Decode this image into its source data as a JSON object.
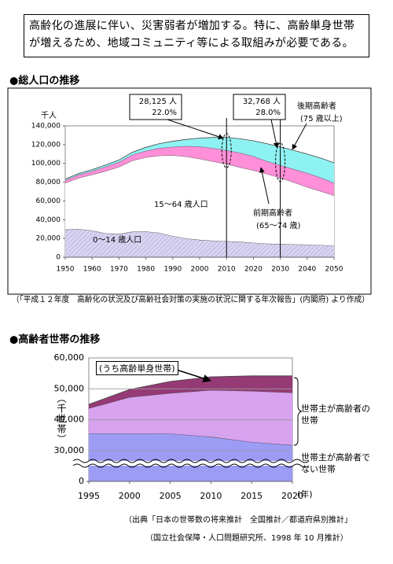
{
  "header": {
    "lines": [
      "高齢化の進展に伴い、災害弱者が増加する。特に、高齢単身世帯",
      "が増えるため、地域コミュニティ等による取組みが必要である。"
    ]
  },
  "chart_data": [
    {
      "type": "area",
      "stacked": true,
      "title": "●総人口の推移",
      "y_unit": "千人",
      "source": [
        "（「平成１２年度　高齢化の状況及び高齢社会対策の実施の状況に関する年次報告」(内閣府) より作成）"
      ],
      "x": [
        1950,
        1955,
        1960,
        1965,
        1970,
        1975,
        1980,
        1985,
        1990,
        1995,
        2000,
        2005,
        2010,
        2015,
        2020,
        2025,
        2030,
        2035,
        2040,
        2045,
        2050
      ],
      "series": [
        {
          "name": "0～14 歳人口",
          "color": "#d9d4f2",
          "pattern": "hatch",
          "values": [
            29400,
            30100,
            28400,
            25500,
            24800,
            27200,
            27500,
            26000,
            22500,
            20000,
            18500,
            17600,
            17100,
            16400,
            15400,
            14500,
            14000,
            13700,
            13400,
            12900,
            12300
          ]
        },
        {
          "name": "15～64 歳人口",
          "color": "#ffffff",
          "values": [
            49800,
            54400,
            59600,
            66300,
            71500,
            75800,
            79000,
            82300,
            86200,
            87300,
            86400,
            84500,
            82400,
            79400,
            77200,
            74300,
            70800,
            66200,
            61300,
            57500,
            53500
          ]
        },
        {
          "name": "前期高齢者",
          "note": "(65～74 歳)",
          "color": "#ff8fd8",
          "values": [
            2900,
            3400,
            3800,
            4600,
            5200,
            6100,
            6900,
            8000,
            8900,
            11100,
            13000,
            14100,
            14400,
            15500,
            15000,
            13600,
            13300,
            14000,
            15000,
            14500,
            13500
          ]
        },
        {
          "name": "後期高齢者",
          "note": "(75 歳以上)",
          "color": "#8ff2f2",
          "values": [
            1100,
            1400,
            1600,
            1900,
            2200,
            2800,
            3700,
            4700,
            6000,
            7200,
            9000,
            11500,
            13725,
            15000,
            16500,
            18600,
            19468,
            20000,
            20200,
            20800,
            21300
          ]
        }
      ],
      "annotations": [
        {
          "x": 2010,
          "text": [
            "28,125 人",
            "22.0%"
          ]
        },
        {
          "x": 2030,
          "text": [
            "32,768 人",
            "28.0%"
          ]
        }
      ],
      "xlim": [
        1950,
        2050
      ],
      "xticks": [
        1950,
        1960,
        1970,
        1980,
        1990,
        2000,
        2010,
        2020,
        2030,
        2040,
        2050
      ],
      "ylim": [
        0,
        140000
      ],
      "yticks": [
        0,
        {
          "value": 20000,
          "label": "20,000"
        },
        {
          "value": 40000,
          "label": "40,000"
        },
        {
          "value": 60000,
          "label": "60,000"
        },
        {
          "value": 80000,
          "label": "80,000"
        },
        {
          "value": 100000,
          "label": "100,000"
        },
        {
          "value": 120000,
          "label": "120,000"
        },
        {
          "value": 140000,
          "label": "140,000"
        }
      ],
      "grid": false
    },
    {
      "type": "area",
      "stacked": true,
      "title": "●高齢者世帯の推移",
      "y_unit": "（千世帯）",
      "x_unit": "(年)",
      "y_break": true,
      "source": [
        "（出典「日本の世帯数の将来推計　全国推計／都道府県別推計」",
        "（国立社会保障・人口問題研究所、1998 年 10 月推計）"
      ],
      "x": [
        1995,
        2000,
        2005,
        2010,
        2015,
        2020
      ],
      "series": [
        {
          "name": "世帯主が高齢者でない世帯",
          "color": "#9d9cf5",
          "values": [
            35600,
            35600,
            35500,
            34500,
            32800,
            31800
          ]
        },
        {
          "name": "世帯主が高齢者の世帯",
          "color": "#d7a2ee",
          "values": [
            8100,
            11700,
            13100,
            15100,
            16500,
            17000
          ]
        },
        {
          "name": "(うち高齢単身世帯)",
          "color": "#953a74",
          "values": [
            1300,
            2500,
            3800,
            4300,
            4900,
            5400
          ]
        }
      ],
      "xlim": [
        1995,
        2020
      ],
      "xticks": [
        1995,
        2000,
        2005,
        2010,
        2015,
        2020
      ],
      "ylim": [
        0,
        60000
      ],
      "yticks": [
        0,
        {
          "value": 30000,
          "label": "30,000"
        },
        {
          "value": 40000,
          "label": "40,000"
        },
        {
          "value": 50000,
          "label": "50,000"
        },
        {
          "value": 60000,
          "label": "60,000"
        }
      ],
      "grid": true
    }
  ]
}
